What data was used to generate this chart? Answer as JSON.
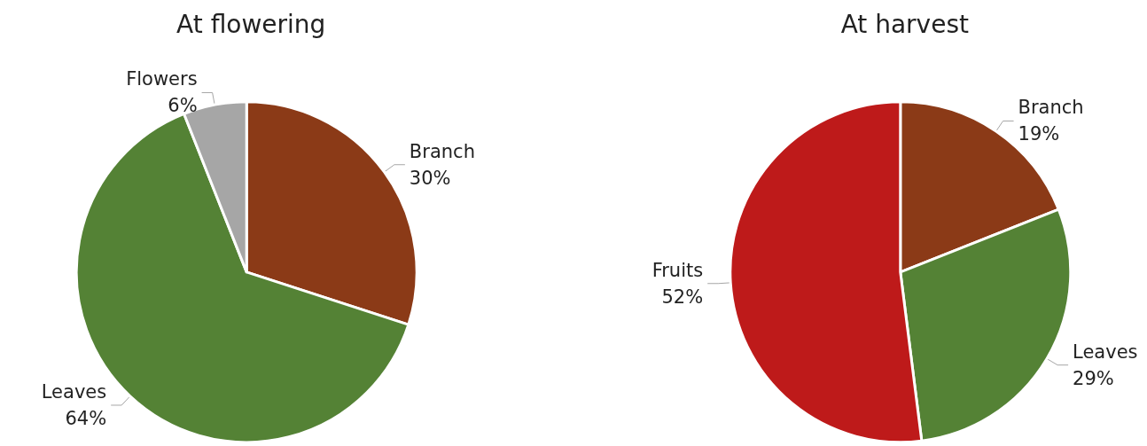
{
  "chart_data": [
    {
      "type": "pie",
      "title": "At flowering",
      "categories": [
        "Branch",
        "Leaves",
        "Flowers"
      ],
      "values": [
        30,
        64,
        6
      ],
      "value_labels": [
        "30%",
        "64%",
        "6%"
      ],
      "colors": [
        "#8b3a17",
        "#548235",
        "#a6a6a6"
      ]
    },
    {
      "type": "pie",
      "title": "At harvest",
      "categories": [
        "Branch",
        "Leaves",
        "Fruits"
      ],
      "values": [
        19,
        29,
        52
      ],
      "value_labels": [
        "19%",
        "29%",
        "52%"
      ],
      "colors": [
        "#8b3a17",
        "#548235",
        "#be1a1a"
      ]
    }
  ]
}
